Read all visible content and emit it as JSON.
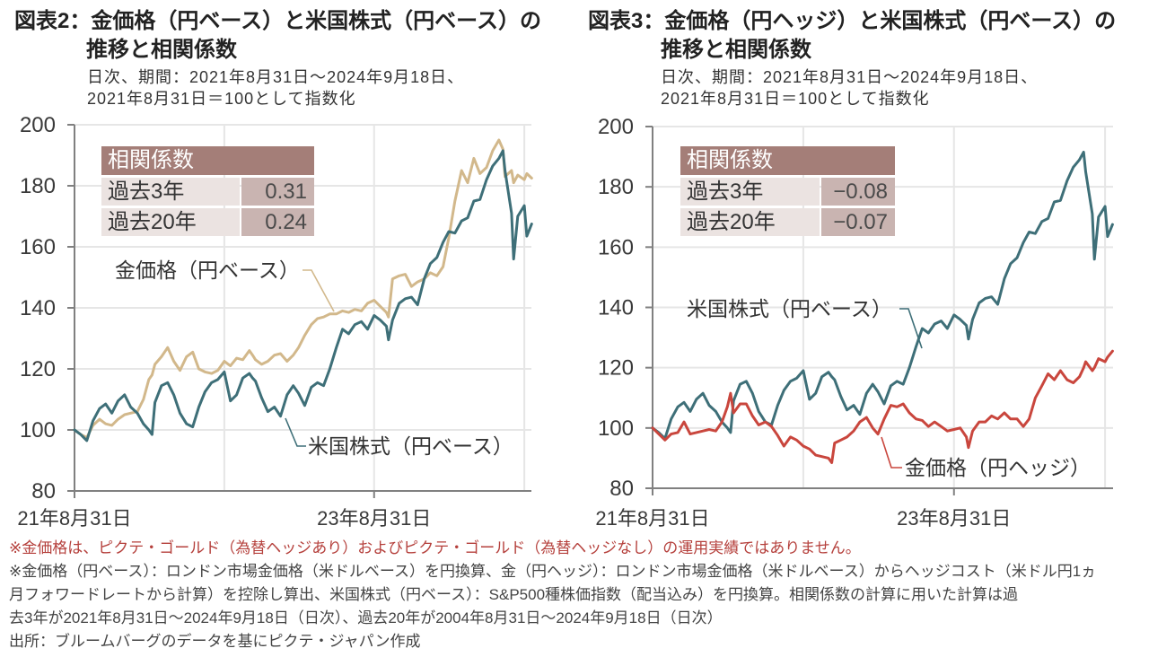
{
  "chart_data": [
    {
      "type": "line",
      "title_lines": [
        "図表2：金価格（円ベース）と米国株式（円ベース）の",
        "推移と相関係数"
      ],
      "subtitle_lines": [
        "日次、期間：2021年8月31日～2024年9月18日、",
        "2021年8月31日＝100として指数化"
      ],
      "xlabel": "",
      "ylabel": "",
      "ylim": [
        80,
        200
      ],
      "yticks": [
        80,
        100,
        120,
        140,
        160,
        180,
        200
      ],
      "xticks": [
        {
          "date": "2021-08-31",
          "label": "21年8月31日"
        },
        {
          "date": "2023-08-31",
          "label": "23年8月31日"
        }
      ],
      "x_gridlines": [
        "2022-08-31",
        "2023-08-31",
        "2024-08-31"
      ],
      "grid": true,
      "x": [
        "2021-08-31",
        "2021-09-15",
        "2021-09-30",
        "2021-10-15",
        "2021-10-31",
        "2021-11-15",
        "2021-11-30",
        "2021-12-15",
        "2021-12-31",
        "2022-01-15",
        "2022-01-31",
        "2022-02-15",
        "2022-02-28",
        "2022-03-08",
        "2022-03-15",
        "2022-03-31",
        "2022-04-15",
        "2022-04-30",
        "2022-05-15",
        "2022-05-31",
        "2022-06-15",
        "2022-06-30",
        "2022-07-15",
        "2022-07-31",
        "2022-08-15",
        "2022-08-31",
        "2022-09-15",
        "2022-09-30",
        "2022-10-15",
        "2022-10-31",
        "2022-11-08",
        "2022-11-15",
        "2022-11-30",
        "2022-12-15",
        "2022-12-31",
        "2023-01-15",
        "2023-01-31",
        "2023-02-15",
        "2023-02-28",
        "2023-03-15",
        "2023-03-31",
        "2023-04-15",
        "2023-04-30",
        "2023-05-15",
        "2023-05-31",
        "2023-06-15",
        "2023-06-30",
        "2023-07-15",
        "2023-07-31",
        "2023-08-15",
        "2023-08-31",
        "2023-09-15",
        "2023-09-30",
        "2023-10-05",
        "2023-10-15",
        "2023-10-31",
        "2023-11-15",
        "2023-11-30",
        "2023-12-15",
        "2023-12-31",
        "2024-01-15",
        "2024-01-31",
        "2024-02-15",
        "2024-02-29",
        "2024-03-15",
        "2024-03-31",
        "2024-04-15",
        "2024-04-30",
        "2024-05-15",
        "2024-05-31",
        "2024-06-15",
        "2024-06-30",
        "2024-07-10",
        "2024-07-15",
        "2024-07-31",
        "2024-08-05",
        "2024-08-15",
        "2024-08-31",
        "2024-09-06",
        "2024-09-18"
      ],
      "series": [
        {
          "name": "金価格（円ベース）",
          "color": "#d2b88b",
          "values": [
            100,
            98.5,
            97.5,
            101.5,
            103.5,
            102,
            101.5,
            103.5,
            105,
            105.5,
            106,
            110,
            116.5,
            118,
            121.5,
            124,
            127,
            122.5,
            119.5,
            124,
            125.5,
            120,
            119,
            118.5,
            119.5,
            122.5,
            121,
            123.5,
            123,
            126,
            124.5,
            123,
            121.5,
            122.5,
            124.5,
            125,
            122.5,
            124.5,
            127,
            131,
            134.5,
            136.5,
            137,
            138,
            138,
            139,
            138.5,
            139.5,
            139,
            141.5,
            142.5,
            140.5,
            138.5,
            137,
            149.5,
            150.5,
            151,
            147,
            148.5,
            149.5,
            151.5,
            150.5,
            153.5,
            163,
            175,
            185,
            181,
            189,
            184,
            186,
            191.5,
            195,
            192,
            183,
            185,
            181,
            183.5,
            182,
            184,
            182.5
          ]
        },
        {
          "name": "米国株式（円ベース）",
          "color": "#3e6f78",
          "values": [
            100,
            98.5,
            96.5,
            103,
            107,
            108.5,
            105.5,
            109.5,
            111.5,
            107.5,
            105.5,
            102,
            100,
            98.5,
            109,
            114.5,
            115.5,
            111.5,
            105.5,
            102,
            101,
            107.5,
            112.5,
            115.5,
            116.5,
            119,
            109.5,
            111.5,
            117,
            118.5,
            117,
            116,
            110.5,
            106,
            107.5,
            104.5,
            111.5,
            114.5,
            112,
            108,
            114,
            115.5,
            114.5,
            120,
            127,
            133,
            131.5,
            134.5,
            135.5,
            133,
            137.5,
            136,
            134,
            129.5,
            136,
            141.5,
            143,
            143.5,
            141,
            149.5,
            154.5,
            156.5,
            161.5,
            165,
            164.5,
            168.5,
            169.5,
            175,
            175.5,
            182,
            186.5,
            189,
            191.5,
            185,
            171,
            156,
            170,
            173.5,
            163.5,
            167.5
          ]
        }
      ],
      "correlation": {
        "title": "相関係数",
        "rows": [
          {
            "label": "過去3年",
            "value": "0.31"
          },
          {
            "label": "過去20年",
            "value": "0.24"
          }
        ]
      }
    },
    {
      "type": "line",
      "title_lines": [
        "図表3：金価格（円ヘッジ）と米国株式（円ベース）の",
        "推移と相関係数"
      ],
      "subtitle_lines": [
        "日次、期間：2021年8月31日～2024年9月18日、",
        "2021年8月31日＝100として指数化"
      ],
      "xlabel": "",
      "ylabel": "",
      "ylim": [
        80,
        200
      ],
      "yticks": [
        80,
        100,
        120,
        140,
        160,
        180,
        200
      ],
      "xticks": [
        {
          "date": "2021-08-31",
          "label": "21年8月31日"
        },
        {
          "date": "2023-08-31",
          "label": "23年8月31日"
        }
      ],
      "x_gridlines": [
        "2022-08-31",
        "2023-08-31",
        "2024-08-31"
      ],
      "grid": true,
      "x": [
        "2021-08-31",
        "2021-09-15",
        "2021-09-30",
        "2021-10-15",
        "2021-10-31",
        "2021-11-15",
        "2021-11-30",
        "2021-12-15",
        "2021-12-31",
        "2022-01-15",
        "2022-01-31",
        "2022-02-15",
        "2022-02-28",
        "2022-03-08",
        "2022-03-15",
        "2022-03-31",
        "2022-04-15",
        "2022-04-30",
        "2022-05-15",
        "2022-05-31",
        "2022-06-15",
        "2022-06-30",
        "2022-07-15",
        "2022-07-31",
        "2022-08-15",
        "2022-08-31",
        "2022-09-15",
        "2022-09-30",
        "2022-10-15",
        "2022-10-31",
        "2022-11-08",
        "2022-11-15",
        "2022-11-30",
        "2022-12-15",
        "2022-12-31",
        "2023-01-15",
        "2023-01-31",
        "2023-02-15",
        "2023-02-28",
        "2023-03-15",
        "2023-03-31",
        "2023-04-15",
        "2023-04-30",
        "2023-05-15",
        "2023-05-31",
        "2023-06-15",
        "2023-06-30",
        "2023-07-15",
        "2023-07-31",
        "2023-08-15",
        "2023-08-31",
        "2023-09-15",
        "2023-09-30",
        "2023-10-05",
        "2023-10-15",
        "2023-10-31",
        "2023-11-15",
        "2023-11-30",
        "2023-12-15",
        "2023-12-31",
        "2024-01-15",
        "2024-01-31",
        "2024-02-15",
        "2024-02-29",
        "2024-03-15",
        "2024-03-31",
        "2024-04-15",
        "2024-04-30",
        "2024-05-15",
        "2024-05-31",
        "2024-06-15",
        "2024-06-30",
        "2024-07-10",
        "2024-07-15",
        "2024-07-31",
        "2024-08-05",
        "2024-08-15",
        "2024-08-31",
        "2024-09-06",
        "2024-09-18"
      ],
      "series": [
        {
          "name": "米国株式（円ベース）",
          "color": "#3e6f78",
          "values": [
            100,
            98.5,
            96.5,
            103,
            107,
            108.5,
            105.5,
            109.5,
            111.5,
            107.5,
            105.5,
            102,
            100,
            98.5,
            109,
            114.5,
            115.5,
            111.5,
            105.5,
            102,
            101,
            107.5,
            112.5,
            115.5,
            116.5,
            119,
            109.5,
            111.5,
            117,
            118.5,
            117,
            116,
            110.5,
            106,
            107.5,
            104.5,
            111.5,
            114.5,
            112,
            108,
            114,
            115.5,
            114.5,
            120,
            127,
            133,
            131.5,
            134.5,
            135.5,
            133,
            137.5,
            136,
            134,
            129.5,
            136,
            141.5,
            143,
            143.5,
            141,
            149.5,
            154.5,
            156.5,
            161.5,
            165,
            164.5,
            168.5,
            169.5,
            175,
            175.5,
            182,
            186.5,
            189,
            191.5,
            185,
            171,
            156,
            170,
            173.5,
            163.5,
            167.5
          ]
        },
        {
          "name": "金価格（円ヘッジ）",
          "color": "#c9463d",
          "values": [
            100,
            98,
            96,
            98,
            98.5,
            102,
            98,
            98.5,
            99,
            99.5,
            99,
            102,
            107,
            111.5,
            105,
            108,
            108,
            104,
            101,
            102,
            100.5,
            97.5,
            94,
            97,
            96,
            94,
            93,
            91,
            90.5,
            90,
            88.5,
            95,
            96,
            97,
            99,
            102,
            103.5,
            100,
            98,
            103,
            107.5,
            107,
            108,
            105,
            103,
            102.5,
            100.5,
            102,
            100.5,
            99,
            99.5,
            100,
            97,
            93.5,
            99,
            102,
            102,
            104,
            103,
            105,
            103,
            103,
            100.5,
            103,
            110,
            114,
            118,
            116,
            119,
            116,
            115,
            117,
            120,
            122,
            119,
            120,
            123,
            122,
            123.5,
            125.5
          ]
        }
      ],
      "correlation": {
        "title": "相関係数",
        "rows": [
          {
            "label": "過去3年",
            "value": "−0.08"
          },
          {
            "label": "過去20年",
            "value": "−0.07"
          }
        ]
      }
    }
  ],
  "footer": {
    "disclaimer": "※金価格は、ピクテ・ゴールド（為替ヘッジあり）およびピクテ・ゴールド（為替ヘッジなし）の運用実績ではありません。",
    "methodology_lines": [
      "※金価格（円ベース）：ロンドン市場金価格（米ドルベース）を円換算、金（円ヘッジ）：ロンドン市場金価格（米ドルベース）からヘッジコスト（米ドル円1ヵ",
      "月フォワードレートから計算）を控除し算出、米国株式（円ベース）：S&P500種株価指数（配当込み）を円換算。相関係数の計算に用いた計算は過",
      "去3年が2021年8月31日～2024年9月18日（日次）、過去20年が2004年8月31日～2024年9月18日（日次）"
    ],
    "source": "出所：ブルームバーグのデータを基にピクテ・ジャパン作成"
  }
}
